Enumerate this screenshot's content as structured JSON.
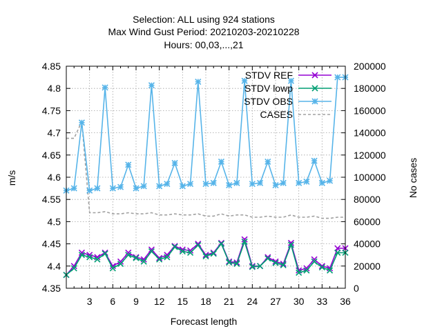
{
  "chart_data": {
    "type": "line",
    "title_lines": [
      "Selection: ALL using   924 stations",
      "Max Wind Gust   Period: 20210203-20210228",
      "Hours:  00,03,...,21"
    ],
    "xlabel": "Forecast length",
    "ylabel": "m/s",
    "y2label": "No cases",
    "xlim": [
      0,
      36
    ],
    "ylim": [
      4.35,
      4.85
    ],
    "y2lim": [
      0,
      200000
    ],
    "x_ticks": [
      3,
      6,
      9,
      12,
      15,
      18,
      21,
      24,
      27,
      30,
      33,
      36
    ],
    "y_ticks": [
      "4.35",
      "4.4",
      "4.45",
      "4.5",
      "4.55",
      "4.6",
      "4.65",
      "4.7",
      "4.75",
      "4.8",
      "4.85"
    ],
    "y2_ticks": [
      "0",
      "20000",
      "40000",
      "60000",
      "80000",
      "100000",
      "120000",
      "140000",
      "160000",
      "180000",
      "200000"
    ],
    "grid": true,
    "legend_position": "top-right",
    "x": [
      0,
      1,
      2,
      3,
      4,
      5,
      6,
      7,
      8,
      9,
      10,
      11,
      12,
      13,
      14,
      15,
      16,
      17,
      18,
      19,
      20,
      21,
      22,
      23,
      24,
      25,
      26,
      27,
      28,
      29,
      30,
      31,
      32,
      33,
      34,
      35,
      36
    ],
    "series": [
      {
        "name": "STDV REF",
        "color": "#9400d3",
        "axis": "y",
        "marker": "x",
        "values": [
          4.38,
          4.4,
          4.43,
          4.425,
          4.42,
          4.43,
          4.4,
          4.41,
          4.43,
          4.42,
          4.415,
          4.437,
          4.418,
          4.425,
          4.445,
          4.437,
          4.435,
          4.45,
          4.425,
          4.43,
          4.452,
          4.41,
          4.408,
          4.46,
          4.4,
          4.4,
          4.42,
          4.41,
          4.405,
          4.452,
          4.39,
          4.395,
          4.415,
          4.4,
          4.395,
          4.44,
          4.44
        ]
      },
      {
        "name": "STDV lowp",
        "color": "#009e73",
        "axis": "y",
        "marker": "x",
        "values": [
          4.38,
          4.395,
          4.425,
          4.42,
          4.415,
          4.428,
          4.395,
          4.405,
          4.425,
          4.418,
          4.41,
          4.433,
          4.415,
          4.42,
          4.443,
          4.433,
          4.43,
          4.447,
          4.422,
          4.428,
          4.45,
          4.408,
          4.405,
          4.455,
          4.398,
          4.4,
          4.417,
          4.407,
          4.402,
          4.448,
          4.385,
          4.39,
          4.41,
          4.397,
          4.39,
          4.43,
          4.43
        ]
      },
      {
        "name": "STDV OBS",
        "color": "#56b4e9",
        "axis": "y",
        "marker": "asterisk",
        "values": [
          4.57,
          4.575,
          4.723,
          4.57,
          4.575,
          4.802,
          4.575,
          4.578,
          4.628,
          4.575,
          4.58,
          4.807,
          4.58,
          4.585,
          4.632,
          4.58,
          4.585,
          4.815,
          4.585,
          4.587,
          4.635,
          4.582,
          4.587,
          4.817,
          4.585,
          4.587,
          4.635,
          4.582,
          4.587,
          4.817,
          4.587,
          4.59,
          4.637,
          4.587,
          4.592,
          4.825,
          4.825
        ]
      },
      {
        "name": "CASES",
        "color": "#a0a0a0",
        "axis": "y2",
        "dashed": true,
        "values": [
          135000,
          135000,
          150000,
          68000,
          68000,
          69000,
          67000,
          67000,
          68000,
          67000,
          67000,
          68000,
          66000,
          66000,
          67000,
          66000,
          66000,
          67000,
          65000,
          65000,
          67000,
          65000,
          66000,
          66000,
          64000,
          64000,
          65000,
          64000,
          64000,
          66000,
          64000,
          64000,
          65000,
          63000,
          63000,
          64000,
          64000
        ]
      }
    ]
  }
}
